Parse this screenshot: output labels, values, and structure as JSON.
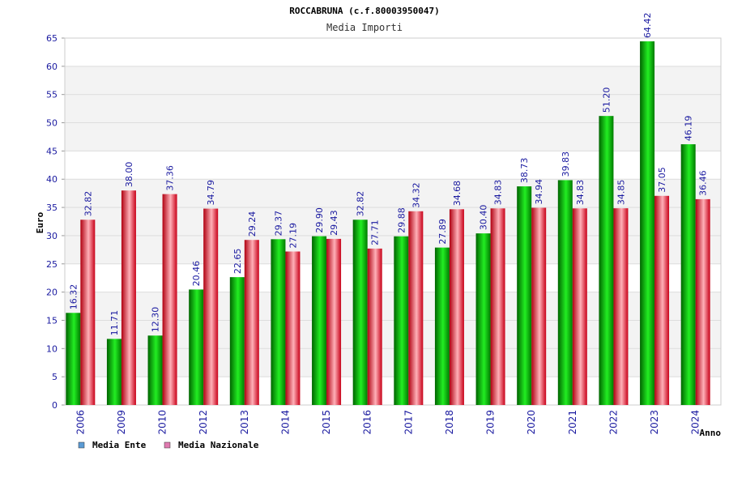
{
  "chart_data": {
    "type": "bar",
    "title": "ROCCABRUNA (c.f.80003950047)",
    "subtitle": "Media Importi",
    "xlabel": "Anno",
    "ylabel": "Euro",
    "ylim": [
      0,
      65
    ],
    "yticks": [
      0,
      5,
      10,
      15,
      20,
      25,
      30,
      35,
      40,
      45,
      50,
      55,
      60,
      65
    ],
    "grid": true,
    "legend_position": "bottom-left",
    "categories": [
      "2006",
      "2009",
      "2010",
      "2012",
      "2013",
      "2014",
      "2015",
      "2016",
      "2017",
      "2018",
      "2019",
      "2020",
      "2021",
      "2022",
      "2023",
      "2024"
    ],
    "series": [
      {
        "name": "Media Ente",
        "color": "#00c000",
        "legend_color": "#5b9bd5",
        "values": [
          16.32,
          11.71,
          12.3,
          20.46,
          22.65,
          29.37,
          29.9,
          32.82,
          29.88,
          27.89,
          30.4,
          38.73,
          39.83,
          51.2,
          64.42,
          46.19
        ],
        "labels": [
          "16.32",
          "11.71",
          "12.30",
          "20.46",
          "22.65",
          "29.37",
          "29.90",
          "32.82",
          "29.88",
          "27.89",
          "30.40",
          "38.73",
          "39.83",
          "51.20",
          "64.42",
          "46.19"
        ]
      },
      {
        "name": "Media Nazionale",
        "color": "#e0202c",
        "legend_color": "#e07ab0",
        "values": [
          32.82,
          38.0,
          37.36,
          34.79,
          29.24,
          27.19,
          29.43,
          27.71,
          34.32,
          34.68,
          34.83,
          34.94,
          34.83,
          34.85,
          37.05,
          36.46
        ],
        "labels": [
          "32.82",
          "38.00",
          "37.36",
          "34.79",
          "29.24",
          "27.19",
          "29.43",
          "27.71",
          "34.32",
          "34.68",
          "34.83",
          "34.94",
          "34.83",
          "34.85",
          "37.05",
          "36.46"
        ]
      }
    ]
  }
}
